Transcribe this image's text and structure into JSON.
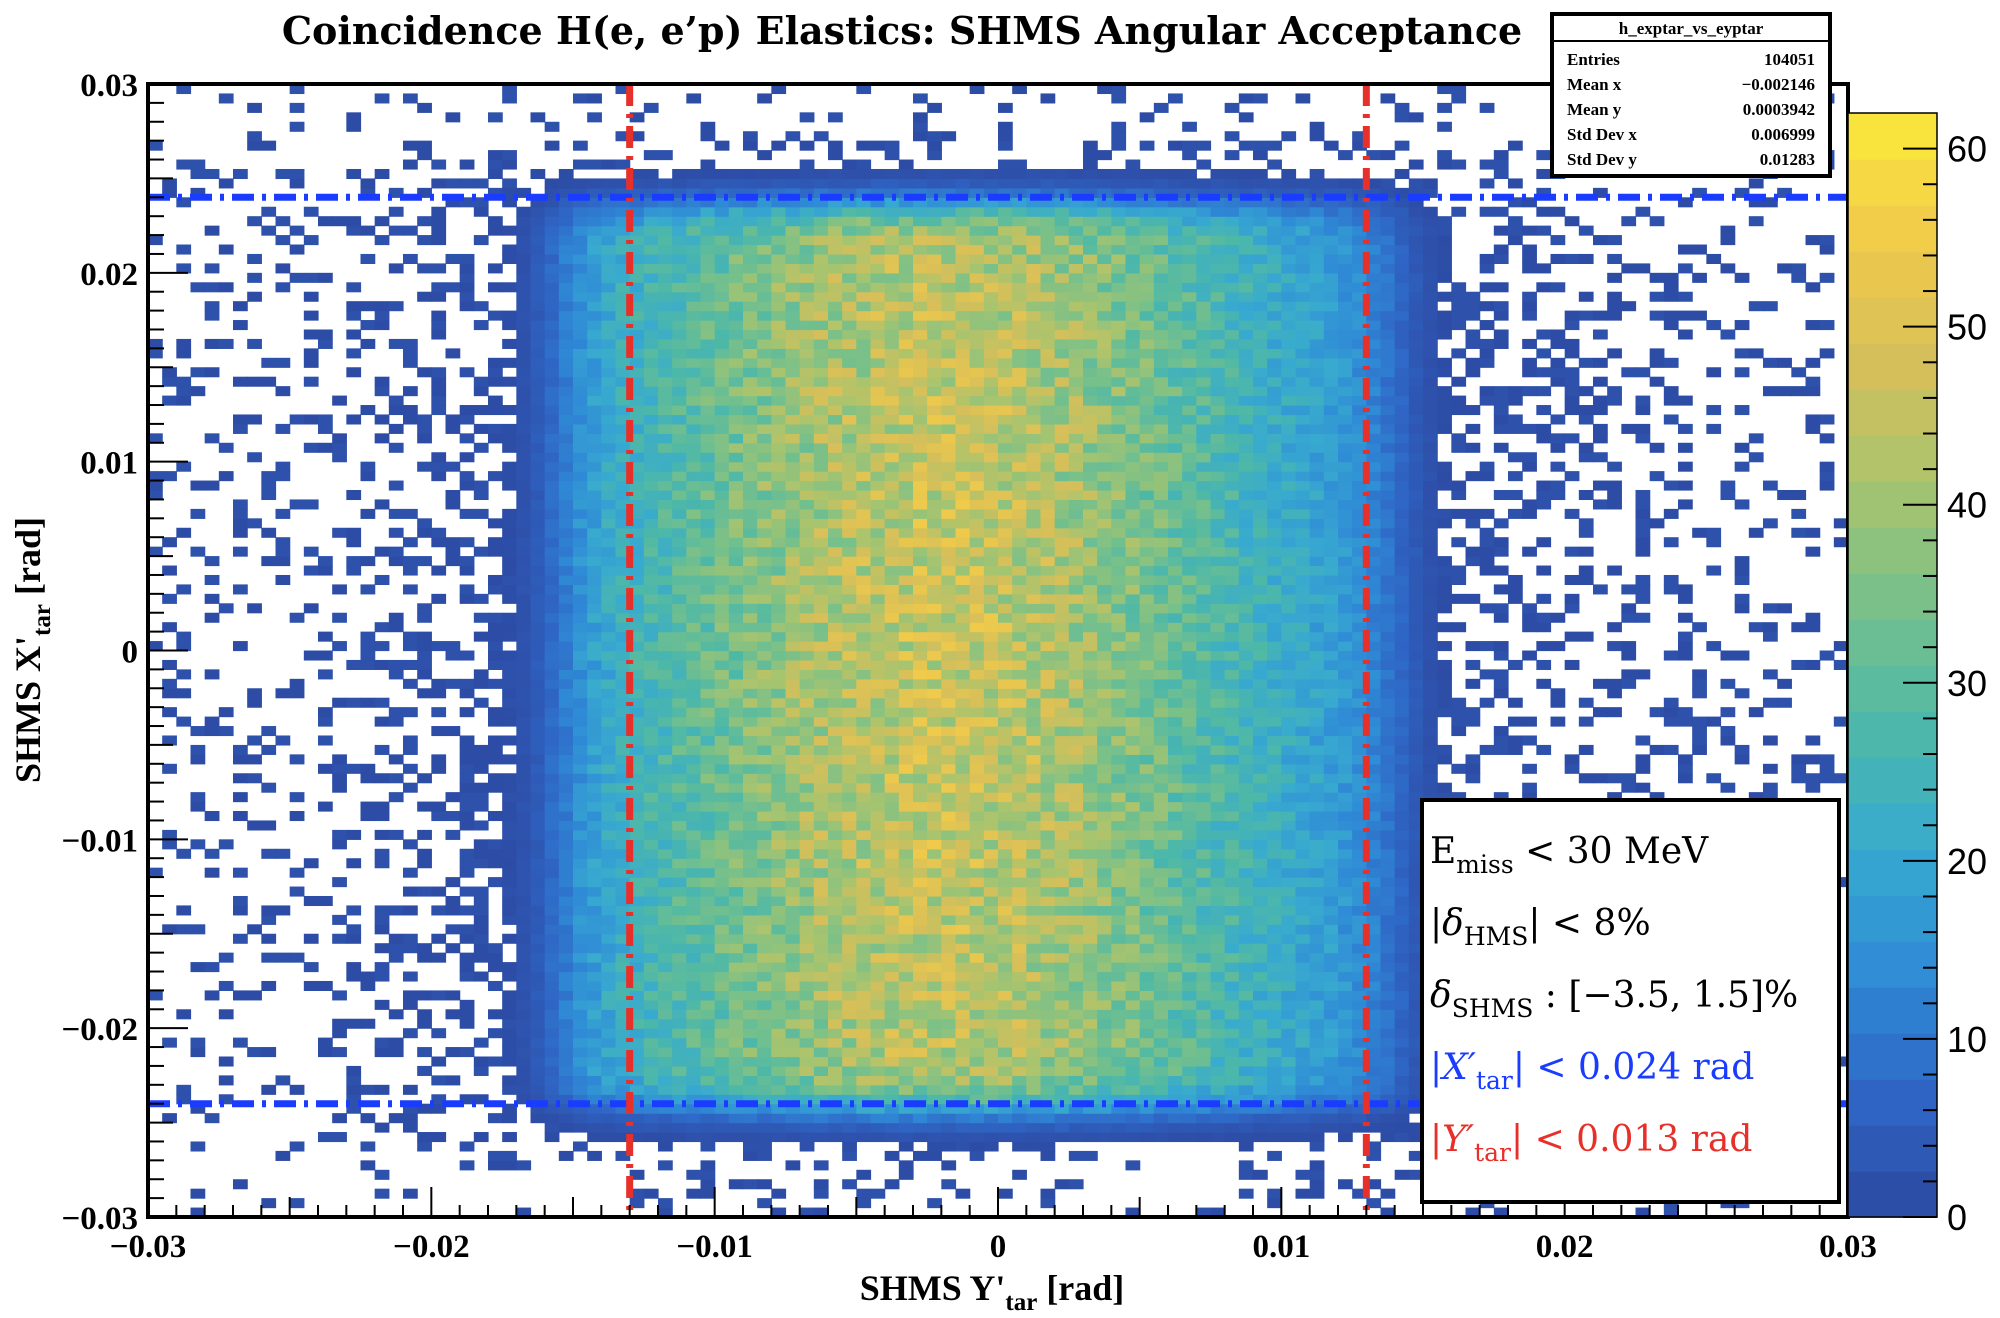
{
  "chart_data": {
    "type": "heatmap",
    "title": "Coincidence H(e, e’p) Elastics: SHMS Angular Acceptance",
    "xlabel": {
      "main": "SHMS Y'",
      "sub": "tar",
      "unit": " [rad]"
    },
    "ylabel": {
      "main": "SHMS X'",
      "sub": "tar",
      "unit": " [rad]"
    },
    "xlim": [
      -0.03,
      0.03
    ],
    "ylim": [
      -0.03,
      0.03
    ],
    "x_ticks": [
      {
        "value": -0.03,
        "label": "−0.03"
      },
      {
        "value": -0.02,
        "label": "−0.02"
      },
      {
        "value": -0.01,
        "label": "−0.01"
      },
      {
        "value": 0,
        "label": "0"
      },
      {
        "value": 0.01,
        "label": "0.01"
      },
      {
        "value": 0.02,
        "label": "0.02"
      },
      {
        "value": 0.03,
        "label": "0.03"
      }
    ],
    "y_ticks": [
      {
        "value": 0.03,
        "label": "0.03"
      },
      {
        "value": 0.02,
        "label": "0.02"
      },
      {
        "value": 0.01,
        "label": "0.01"
      },
      {
        "value": 0,
        "label": "0"
      },
      {
        "value": -0.01,
        "label": "−0.01"
      },
      {
        "value": -0.02,
        "label": "−0.02"
      },
      {
        "value": -0.03,
        "label": "−0.03"
      }
    ],
    "bins": {
      "nx": 120,
      "ny": 120
    },
    "color_scale": {
      "min": 0,
      "max": 62,
      "ticks": [
        0,
        10,
        20,
        30,
        40,
        50,
        60
      ],
      "stops": [
        "#2d48a0",
        "#2f66c6",
        "#2f8bd6",
        "#38aacf",
        "#4db8a8",
        "#78c08a",
        "#a9c46e",
        "#d7bf59",
        "#f1cb4a",
        "#fbe83a"
      ]
    },
    "cut_lines": [
      {
        "axis": "y",
        "value": 0.024,
        "style": "dash-dot",
        "color": "#1a3cff"
      },
      {
        "axis": "y",
        "value": -0.024,
        "style": "dash-dot",
        "color": "#1a3cff"
      },
      {
        "axis": "x",
        "value": -0.013,
        "style": "dash-dot",
        "color": "#e8302a"
      },
      {
        "axis": "x",
        "value": 0.013,
        "style": "dash-dot",
        "color": "#e8302a"
      }
    ],
    "stats": {
      "name": "h_exptar_vs_eyptar",
      "rows": [
        {
          "label": "Entries",
          "value": "104051"
        },
        {
          "label": "Mean x",
          "value": "−0.002146"
        },
        {
          "label": "Mean y",
          "value": "0.0003942"
        },
        {
          "label": "Std Dev x",
          "value": "0.006999"
        },
        {
          "label": "Std Dev y",
          "value": "0.01283"
        }
      ]
    },
    "cuts_legend": {
      "emiss": {
        "main": "E",
        "sub": "miss",
        "rest": " < 30 MeV",
        "color": "#000000"
      },
      "dhms": {
        "pre": "|",
        "main": "δ",
        "sub": "HMS",
        "rest": "| < 8%",
        "color": "#000000"
      },
      "dshms": {
        "main": "δ",
        "sub": "SHMS",
        "rest": " : [−3.5, 1.5]%",
        "color": "#000000"
      },
      "xtar": {
        "pre": "|",
        "main": "X′",
        "sub": "tar",
        "rest": "| < 0.024 rad",
        "color": "#1a3cff"
      },
      "ytar": {
        "pre": "|",
        "main": "Y′",
        "sub": "tar",
        "rest": "| < 0.013 rad",
        "color": "#e8302a"
      }
    }
  }
}
